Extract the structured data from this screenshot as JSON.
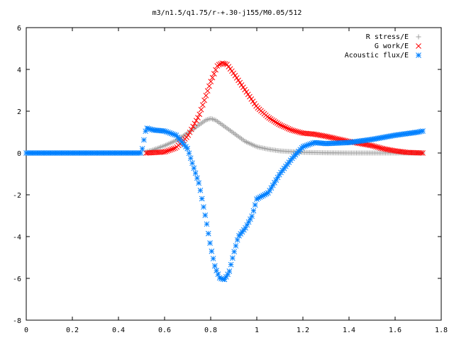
{
  "chart_data": {
    "type": "scatter",
    "title": "m3/n1.5/q1.75/r-+.30-j155/M0.05/512",
    "xlabel": "",
    "ylabel": "",
    "xlim": [
      0,
      1.8
    ],
    "ylim": [
      -8,
      6
    ],
    "xticks": [
      "0",
      "0.2",
      "0.4",
      "0.6",
      "0.8",
      "1",
      "1.2",
      "1.4",
      "1.6",
      "1.8"
    ],
    "yticks": [
      "6",
      "4",
      "2",
      "0",
      "-2",
      "-4",
      "-6",
      "-8"
    ],
    "xtick_values": [
      0,
      0.2,
      0.4,
      0.6,
      0.8,
      1.0,
      1.2,
      1.4,
      1.6,
      1.8
    ],
    "ytick_values": [
      6,
      4,
      2,
      0,
      -2,
      -4,
      -6,
      -8
    ],
    "grid": false,
    "legend_position": "top-right",
    "series": [
      {
        "name": "R stress/E",
        "marker": "plus",
        "color": "#a0a0a0",
        "points": [
          [
            0.52,
            0.05
          ],
          [
            0.55,
            0.15
          ],
          [
            0.6,
            0.35
          ],
          [
            0.65,
            0.6
          ],
          [
            0.7,
            0.95
          ],
          [
            0.75,
            1.35
          ],
          [
            0.78,
            1.58
          ],
          [
            0.8,
            1.65
          ],
          [
            0.82,
            1.58
          ],
          [
            0.85,
            1.35
          ],
          [
            0.9,
            0.95
          ],
          [
            0.95,
            0.55
          ],
          [
            1.0,
            0.3
          ],
          [
            1.05,
            0.18
          ],
          [
            1.1,
            0.1
          ],
          [
            1.2,
            0.03
          ],
          [
            1.3,
            0.01
          ],
          [
            1.4,
            0.0
          ],
          [
            1.5,
            0.0
          ],
          [
            1.6,
            0.0
          ],
          [
            1.72,
            0.0
          ]
        ]
      },
      {
        "name": "G work/E",
        "marker": "cross",
        "color": "#ff0000",
        "points": [
          [
            0.52,
            0.0
          ],
          [
            0.6,
            0.05
          ],
          [
            0.65,
            0.25
          ],
          [
            0.7,
            0.8
          ],
          [
            0.75,
            1.8
          ],
          [
            0.8,
            3.4
          ],
          [
            0.83,
            4.2
          ],
          [
            0.85,
            4.3
          ],
          [
            0.87,
            4.25
          ],
          [
            0.9,
            3.8
          ],
          [
            0.95,
            3.0
          ],
          [
            1.0,
            2.2
          ],
          [
            1.05,
            1.7
          ],
          [
            1.1,
            1.35
          ],
          [
            1.15,
            1.1
          ],
          [
            1.2,
            0.95
          ],
          [
            1.25,
            0.9
          ],
          [
            1.3,
            0.8
          ],
          [
            1.4,
            0.55
          ],
          [
            1.5,
            0.35
          ],
          [
            1.55,
            0.2
          ],
          [
            1.6,
            0.1
          ],
          [
            1.65,
            0.03
          ],
          [
            1.72,
            0.0
          ]
        ]
      },
      {
        "name": "Acoustic flux/E",
        "marker": "star",
        "color": "#0080ff",
        "points": [
          [
            0.0,
            0.0
          ],
          [
            0.1,
            0.0
          ],
          [
            0.2,
            0.0
          ],
          [
            0.3,
            0.0
          ],
          [
            0.4,
            0.0
          ],
          [
            0.5,
            0.0
          ],
          [
            0.52,
            1.2
          ],
          [
            0.55,
            1.1
          ],
          [
            0.6,
            1.05
          ],
          [
            0.65,
            0.85
          ],
          [
            0.7,
            0.2
          ],
          [
            0.75,
            -1.5
          ],
          [
            0.78,
            -3.2
          ],
          [
            0.8,
            -4.5
          ],
          [
            0.82,
            -5.5
          ],
          [
            0.84,
            -6.0
          ],
          [
            0.86,
            -6.05
          ],
          [
            0.88,
            -5.7
          ],
          [
            0.9,
            -4.8
          ],
          [
            0.92,
            -4.0
          ],
          [
            0.95,
            -3.6
          ],
          [
            0.98,
            -3.0
          ],
          [
            1.0,
            -2.2
          ],
          [
            1.05,
            -1.9
          ],
          [
            1.1,
            -1.0
          ],
          [
            1.15,
            -0.3
          ],
          [
            1.2,
            0.3
          ],
          [
            1.25,
            0.5
          ],
          [
            1.3,
            0.45
          ],
          [
            1.4,
            0.5
          ],
          [
            1.5,
            0.65
          ],
          [
            1.6,
            0.85
          ],
          [
            1.7,
            1.0
          ],
          [
            1.72,
            1.05
          ]
        ]
      }
    ]
  }
}
